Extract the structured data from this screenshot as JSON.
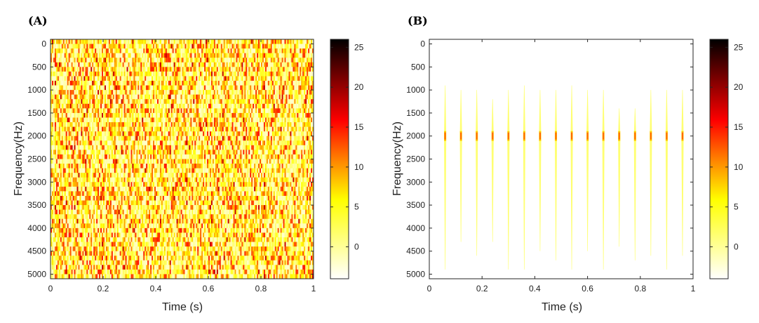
{
  "chart_data": [
    {
      "panel_label": "(A)",
      "type": "heatmap",
      "description_visible": "noise spectrogram",
      "xlabel": "Time (s)",
      "ylabel": "Frequency(Hz)",
      "xlim": [
        0,
        1
      ],
      "ylim": [
        5100,
        -100
      ],
      "y_reversed": true,
      "x_ticks": [
        "0",
        "0.2",
        "0.4",
        "0.6",
        "0.8",
        "1"
      ],
      "x_tick_values": [
        0,
        0.2,
        0.4,
        0.6,
        0.8,
        1
      ],
      "y_ticks": [
        "0",
        "500",
        "1000",
        "1500",
        "2000",
        "2500",
        "3000",
        "3500",
        "4000",
        "4500",
        "5000"
      ],
      "y_tick_values": [
        0,
        500,
        1000,
        1500,
        2000,
        2500,
        3000,
        3500,
        4000,
        4500,
        5000
      ],
      "colorbar": {
        "ticks": [
          "0",
          "5",
          "10",
          "15",
          "20",
          "25"
        ],
        "tick_values": [
          0,
          5,
          10,
          15,
          20,
          25
        ],
        "range": [
          -4,
          26
        ],
        "colormap": "hot-reversed",
        "colors": [
          "#ffffff",
          "#ffff00",
          "#ff8000",
          "#ff0000",
          "#800000",
          "#000000"
        ]
      },
      "pattern": {
        "kind": "random",
        "time_bins": 190,
        "freq_bins": 52,
        "typical_range": [
          -2,
          15
        ]
      }
    },
    {
      "panel_label": "(B)",
      "type": "heatmap",
      "xlabel": "Time (s)",
      "ylabel": "Frequency(Hz)",
      "xlim": [
        0,
        1
      ],
      "ylim": [
        5100,
        -100
      ],
      "y_reversed": true,
      "x_ticks": [
        "0",
        "0.2",
        "0.4",
        "0.6",
        "0.8",
        "1"
      ],
      "x_tick_values": [
        0,
        0.2,
        0.4,
        0.6,
        0.8,
        1
      ],
      "y_ticks": [
        "0",
        "500",
        "1000",
        "1500",
        "2000",
        "2500",
        "3000",
        "3500",
        "4000",
        "4500",
        "5000"
      ],
      "y_tick_values": [
        0,
        500,
        1000,
        1500,
        2000,
        2500,
        3000,
        3500,
        4000,
        4500,
        5000
      ],
      "colorbar": {
        "ticks": [
          "0",
          "5",
          "10",
          "15",
          "20",
          "25"
        ],
        "tick_values": [
          0,
          5,
          10,
          15,
          20,
          25
        ],
        "range": [
          -4,
          26
        ],
        "colormap": "hot-reversed",
        "colors": [
          "#ffffff",
          "#ffff00",
          "#ff8000",
          "#ff0000",
          "#800000",
          "#000000"
        ]
      },
      "pattern": {
        "kind": "impulses",
        "impulse_times": [
          0.06,
          0.12,
          0.18,
          0.24,
          0.3,
          0.36,
          0.42,
          0.48,
          0.54,
          0.6,
          0.66,
          0.72,
          0.78,
          0.84,
          0.9,
          0.96
        ],
        "center_frequency": 2000,
        "center_value": 12,
        "streak_value": 1.5,
        "streak_extents": [
          [
            900,
            4900
          ],
          [
            1000,
            4300
          ],
          [
            1000,
            4600
          ],
          [
            1200,
            4300
          ],
          [
            1000,
            4900
          ],
          [
            900,
            4900
          ],
          [
            1000,
            4500
          ],
          [
            1000,
            4700
          ],
          [
            900,
            4900
          ],
          [
            1000,
            4500
          ],
          [
            1000,
            4900
          ],
          [
            1400,
            4400
          ],
          [
            1400,
            4700
          ],
          [
            1000,
            4600
          ],
          [
            1000,
            4900
          ],
          [
            1000,
            4600
          ]
        ]
      }
    }
  ]
}
